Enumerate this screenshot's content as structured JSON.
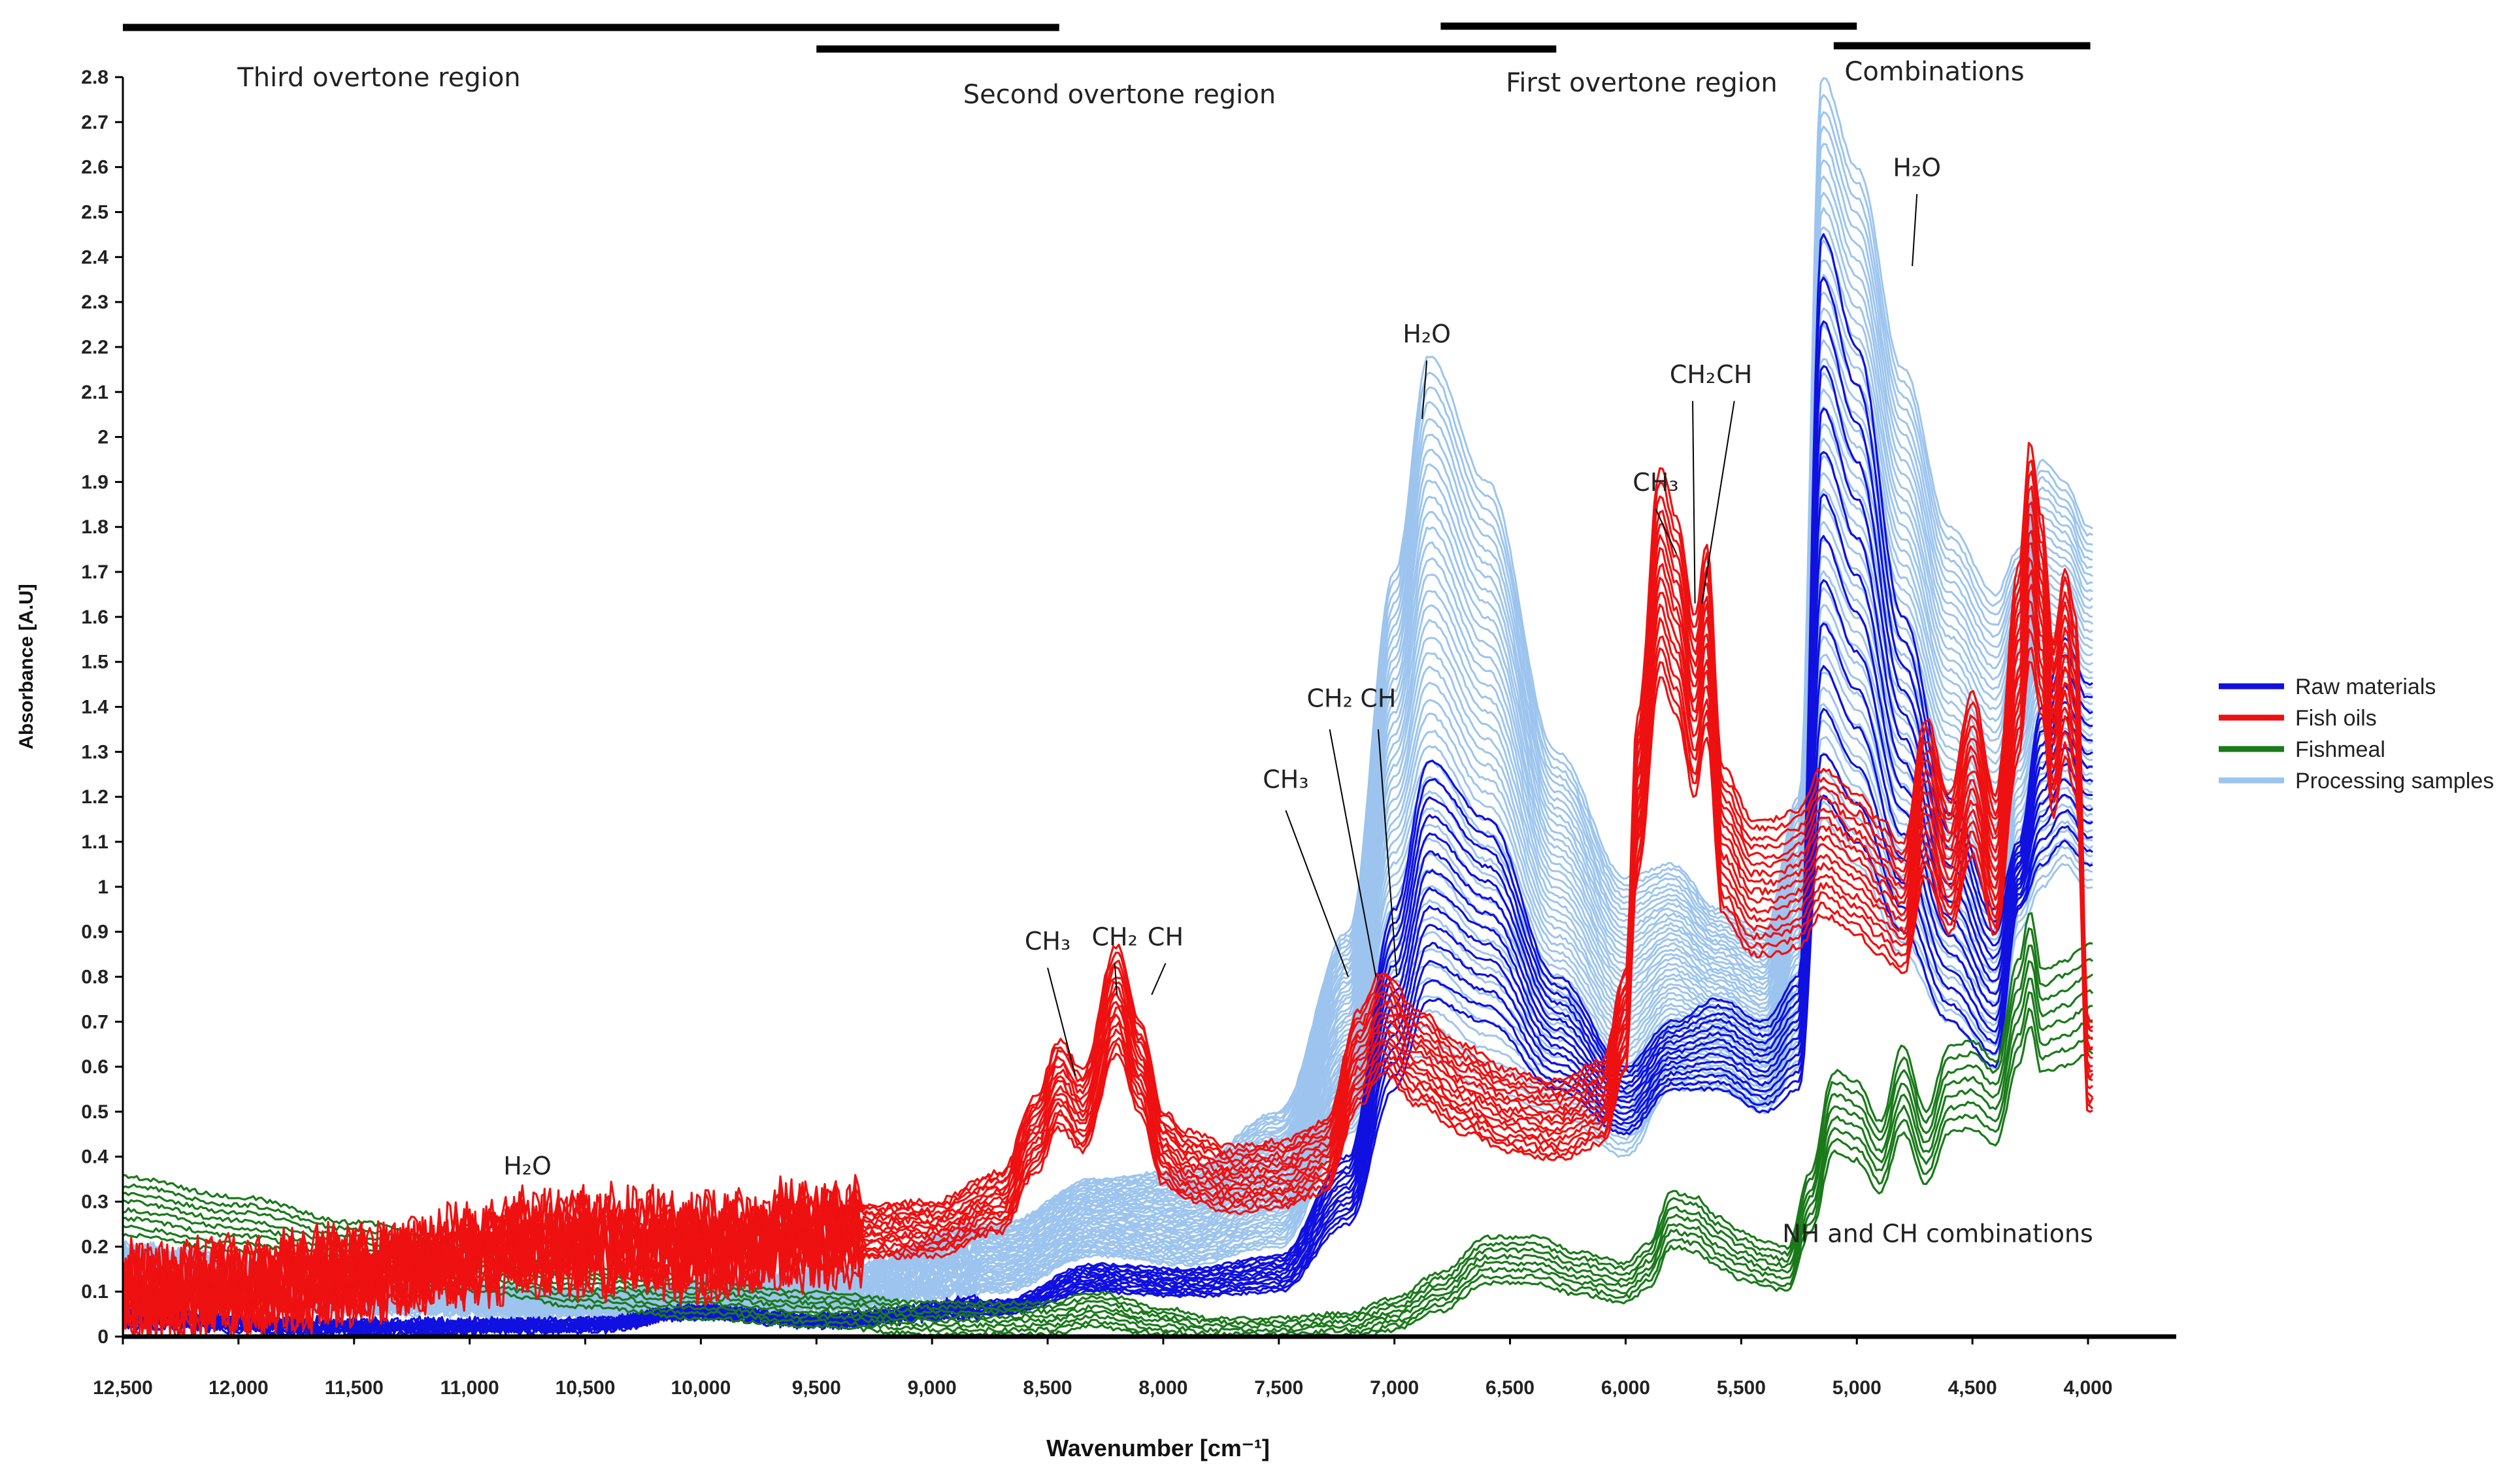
{
  "chart_data": {
    "type": "line",
    "title": "",
    "xlabel": "Wavenumber [cm⁻¹]",
    "ylabel": "Absorbance [A.U]",
    "xlim": [
      12500,
      4000
    ],
    "ylim": [
      0,
      2.8
    ],
    "x_reversed": true,
    "grid": false,
    "legend_position": "right",
    "x_ticks": [
      12500,
      12000,
      11500,
      11000,
      10500,
      10000,
      9500,
      9000,
      8500,
      8000,
      7500,
      7000,
      6500,
      6000,
      5500,
      5000,
      4500,
      4000
    ],
    "x_tick_labels": [
      "12,500",
      "12,000",
      "11,500",
      "11,000",
      "10,500",
      "10,000",
      "9,500",
      "9,000",
      "8,500",
      "8,000",
      "7,500",
      "7,000",
      "6,500",
      "6,000",
      "5,500",
      "5,000",
      "4,500",
      "4,000"
    ],
    "y_ticks": [
      0,
      0.1,
      0.2,
      0.3,
      0.4,
      0.5,
      0.6,
      0.7,
      0.8,
      0.9,
      1,
      1.1,
      1.2,
      1.3,
      1.4,
      1.5,
      1.6,
      1.7,
      1.8,
      1.9,
      2,
      2.1,
      2.2,
      2.3,
      2.4,
      2.5,
      2.6,
      2.7,
      2.8
    ],
    "y_tick_labels": [
      "0",
      "0.1",
      "0.2",
      "0.3",
      "0.4",
      "0.5",
      "0.6",
      "0.7",
      "0.8",
      "0.9",
      "1",
      "1.1",
      "1.2",
      "1.3",
      "1.4",
      "1.5",
      "1.6",
      "1.7",
      "1.8",
      "1.9",
      "2",
      "2.1",
      "2.2",
      "2.3",
      "2.4",
      "2.5",
      "2.6",
      "2.7",
      "2.8"
    ],
    "legend": [
      {
        "name": "Raw materials",
        "color": "#1010e0"
      },
      {
        "name": "Fish oils",
        "color": "#ee1111"
      },
      {
        "name": "Fishmeal",
        "color": "#1a7a1a"
      },
      {
        "name": "Processing samples",
        "color": "#9cc4ee"
      }
    ],
    "regions": [
      {
        "label": "Third overtone region",
        "from": 12500,
        "to": 8450
      },
      {
        "label": "Second overtone region",
        "from": 9500,
        "to": 6300
      },
      {
        "label": "First overtone region",
        "from": 6800,
        "to": 5000
      },
      {
        "label": "Combinations",
        "from": 5100,
        "to": 3990
      }
    ],
    "annotations": [
      {
        "label": "H₂O",
        "x": 10750,
        "y": 0.36
      },
      {
        "label": "CH₃",
        "x": 8500,
        "y": 0.86
      },
      {
        "label": "CH₂",
        "x": 8210,
        "y": 0.87
      },
      {
        "label": "CH",
        "x": 7990,
        "y": 0.87
      },
      {
        "label": "CH₃",
        "x": 7470,
        "y": 1.22
      },
      {
        "label": "CH₂",
        "x": 7280,
        "y": 1.4
      },
      {
        "label": "CH",
        "x": 7070,
        "y": 1.4
      },
      {
        "label": "H₂O",
        "x": 6860,
        "y": 2.21
      },
      {
        "label": "CH₃",
        "x": 5870,
        "y": 1.88
      },
      {
        "label": "CH₂",
        "x": 5710,
        "y": 2.12
      },
      {
        "label": "CH",
        "x": 5530,
        "y": 2.12
      },
      {
        "label": "H₂O",
        "x": 4740,
        "y": 2.58
      },
      {
        "label": "NH and CH combinations",
        "x": 4650,
        "y": 0.21
      }
    ],
    "series": [
      {
        "name": "Processing samples",
        "color": "#9cc4ee",
        "count": 46,
        "representative_low": {
          "x": [
            12500,
            11500,
            10500,
            9500,
            8700,
            8300,
            7900,
            7500,
            7200,
            7000,
            6850,
            6600,
            6300,
            6000,
            5800,
            5600,
            5400,
            5250,
            5150,
            5000,
            4800,
            4600,
            4400,
            4300,
            4200,
            4100,
            4000
          ],
          "y": [
            0.1,
            0.06,
            0.05,
            0.06,
            0.1,
            0.18,
            0.16,
            0.2,
            0.45,
            0.62,
            0.62,
            0.55,
            0.5,
            0.4,
            0.55,
            0.55,
            0.5,
            0.6,
            1.15,
            1.05,
            0.85,
            0.7,
            0.6,
            0.9,
            1.0,
            1.05,
            1.0
          ]
        },
        "representative_high": {
          "x": [
            12500,
            11500,
            10500,
            9500,
            8700,
            8300,
            7900,
            7500,
            7200,
            7000,
            6850,
            6600,
            6300,
            6000,
            5800,
            5600,
            5400,
            5250,
            5150,
            5000,
            4800,
            4600,
            4400,
            4300,
            4200,
            4100,
            4000
          ],
          "y": [
            0.2,
            0.12,
            0.1,
            0.14,
            0.25,
            0.35,
            0.37,
            0.5,
            0.9,
            1.7,
            2.18,
            1.9,
            1.3,
            1.02,
            1.05,
            0.95,
            0.9,
            1.2,
            2.8,
            2.6,
            2.15,
            1.8,
            1.65,
            1.75,
            1.95,
            1.9,
            1.8
          ]
        }
      },
      {
        "name": "Raw materials",
        "color": "#1010e0",
        "count": 14,
        "representative_low": {
          "x": [
            12500,
            11500,
            10500,
            10000,
            9500,
            8700,
            8300,
            7900,
            7500,
            7200,
            7000,
            6850,
            6600,
            6300,
            6000,
            5800,
            5600,
            5400,
            5250,
            5150,
            5000,
            4800,
            4600,
            4400,
            4300,
            4200,
            4100,
            4000
          ],
          "y": [
            0.03,
            0.01,
            0.02,
            0.05,
            0.03,
            0.05,
            0.1,
            0.09,
            0.1,
            0.25,
            0.55,
            0.75,
            0.7,
            0.55,
            0.45,
            0.55,
            0.55,
            0.5,
            0.55,
            1.2,
            1.1,
            0.9,
            0.7,
            0.6,
            0.95,
            1.05,
            1.1,
            1.05
          ]
        },
        "representative_high": {
          "x": [
            12500,
            11500,
            10500,
            10000,
            9500,
            8700,
            8300,
            7900,
            7500,
            7200,
            7000,
            6850,
            6600,
            6300,
            6000,
            5800,
            5600,
            5400,
            5250,
            5150,
            5000,
            4800,
            4600,
            4400,
            4300,
            4200,
            4100,
            4000
          ],
          "y": [
            0.05,
            0.03,
            0.03,
            0.06,
            0.04,
            0.08,
            0.16,
            0.15,
            0.18,
            0.4,
            0.95,
            1.28,
            1.15,
            0.8,
            0.6,
            0.7,
            0.75,
            0.7,
            0.8,
            2.45,
            2.2,
            1.6,
            1.2,
            0.95,
            1.1,
            1.4,
            1.55,
            1.45
          ]
        }
      },
      {
        "name": "Fish oils",
        "color": "#ee1111",
        "count": 16,
        "representative": {
          "x": [
            12500,
            12000,
            11500,
            11000,
            10700,
            10300,
            10000,
            9500,
            9000,
            8700,
            8550,
            8450,
            8350,
            8200,
            8100,
            8000,
            7900,
            7700,
            7500,
            7300,
            7150,
            7050,
            6900,
            6700,
            6500,
            6300,
            6100,
            6000,
            5950,
            5850,
            5780,
            5700,
            5650,
            5580,
            5450,
            5350,
            5250,
            5150,
            5000,
            4900,
            4800,
            4700,
            4600,
            4500,
            4400,
            4300,
            4250,
            4200,
            4150,
            4100,
            4050,
            4000
          ],
          "y": [
            0.1,
            0.11,
            0.14,
            0.18,
            0.21,
            0.21,
            0.2,
            0.23,
            0.24,
            0.3,
            0.45,
            0.56,
            0.5,
            0.75,
            0.6,
            0.42,
            0.38,
            0.35,
            0.36,
            0.4,
            0.62,
            0.7,
            0.62,
            0.55,
            0.5,
            0.48,
            0.52,
            0.7,
            1.2,
            1.7,
            1.6,
            1.4,
            1.55,
            1.1,
            1.0,
            1.0,
            1.02,
            1.1,
            1.05,
            1.0,
            0.95,
            1.2,
            1.05,
            1.25,
            1.05,
            1.5,
            1.75,
            1.6,
            1.35,
            1.5,
            1.4,
            0.6
          ]
        }
      },
      {
        "name": "Fishmeal",
        "color": "#1a7a1a",
        "count": 8,
        "representative": {
          "x": [
            12500,
            12000,
            11500,
            11000,
            10500,
            10000,
            9500,
            9000,
            8500,
            8300,
            8000,
            7800,
            7500,
            7200,
            7000,
            6800,
            6600,
            6400,
            6200,
            6000,
            5900,
            5800,
            5700,
            5600,
            5500,
            5400,
            5300,
            5200,
            5100,
            5000,
            4900,
            4800,
            4700,
            4600,
            4500,
            4400,
            4300,
            4250,
            4200,
            4100,
            4000
          ],
          "y": [
            0.29,
            0.25,
            0.2,
            0.15,
            0.11,
            0.08,
            0.06,
            0.04,
            0.04,
            0.06,
            0.03,
            0.01,
            0.01,
            0.02,
            0.05,
            0.1,
            0.17,
            0.17,
            0.14,
            0.12,
            0.16,
            0.26,
            0.25,
            0.21,
            0.18,
            0.16,
            0.15,
            0.3,
            0.5,
            0.48,
            0.4,
            0.55,
            0.42,
            0.55,
            0.56,
            0.52,
            0.72,
            0.82,
            0.7,
            0.72,
            0.75
          ]
        }
      }
    ]
  }
}
